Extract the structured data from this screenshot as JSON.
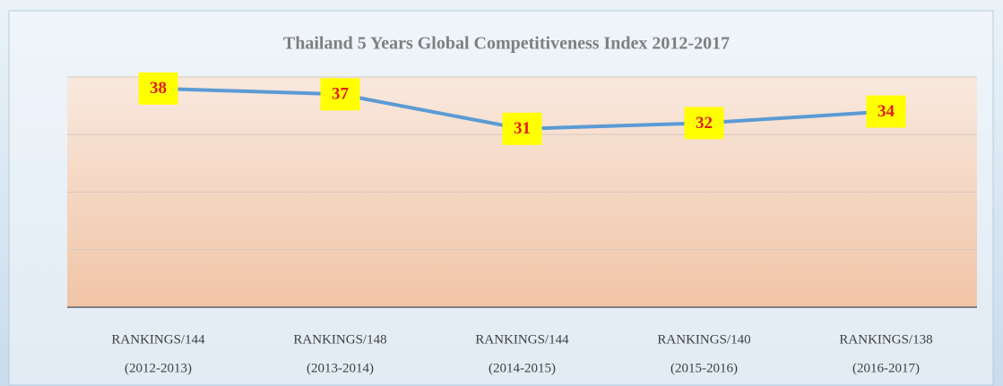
{
  "chart_data": {
    "type": "line",
    "title": "Thailand 5 Years Global Competitiveness Index 2012-2017",
    "categories": [
      [
        "RANKINGS/144",
        "(2012-2013)"
      ],
      [
        "RANKINGS/148",
        "(2013-2014)"
      ],
      [
        "RANKINGS/144",
        "(2014-2015)"
      ],
      [
        "RANKINGS/140",
        "(2015-2016)"
      ],
      [
        "RANKINGS/138",
        "(2016-2017)"
      ]
    ],
    "values": [
      38,
      37,
      31,
      32,
      34
    ],
    "color": "#5b9bd5",
    "ylim": [
      0,
      40
    ],
    "grid": true
  }
}
